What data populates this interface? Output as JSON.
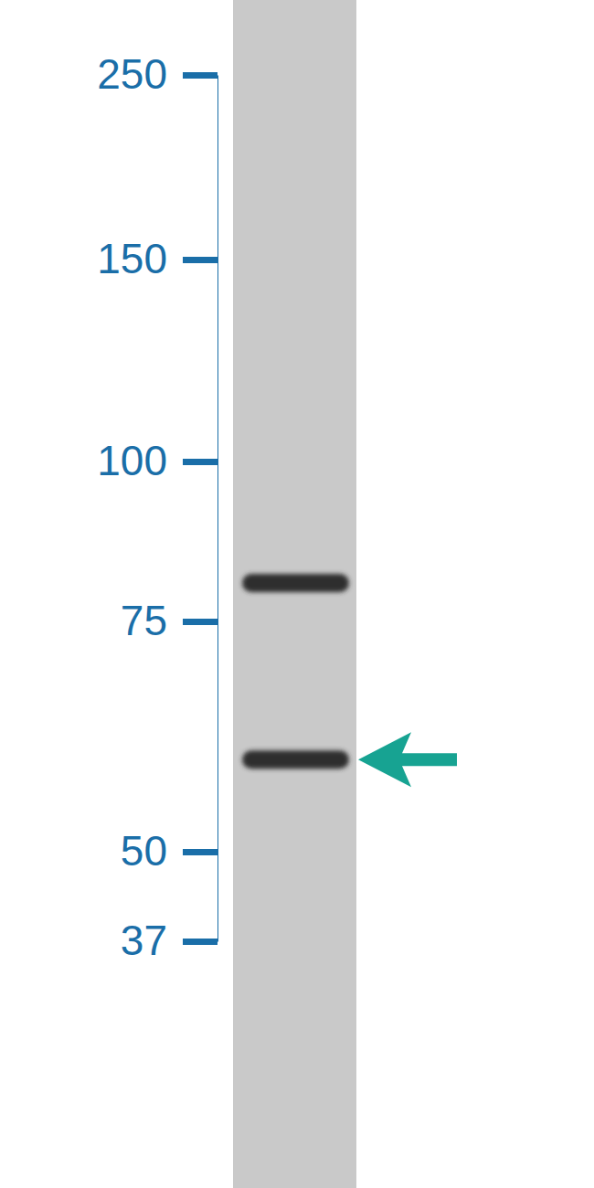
{
  "chart_data": {
    "type": "western_blot",
    "ylim": [
      37,
      250
    ],
    "yticks": [
      37,
      50,
      75,
      100,
      150,
      250
    ],
    "bands": [
      81,
      60
    ],
    "arrow": 60,
    "color": "#1a6ea8"
  }
}
